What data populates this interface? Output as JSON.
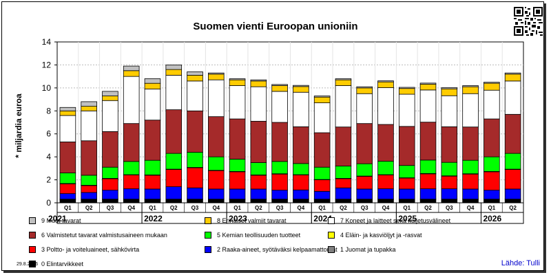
{
  "chart_data": {
    "type": "bar",
    "stacked": true,
    "title": "Suomen vienti Euroopan unioniin",
    "ylabel": "* miljardia euroa",
    "xlabel": "",
    "ylim": [
      0,
      14
    ],
    "yticks": [
      0,
      2,
      4,
      6,
      8,
      10,
      12,
      14
    ],
    "grid": true,
    "legend_position": "bottom",
    "categories": [
      "2021 Q1",
      "2021 Q2",
      "2021 Q3",
      "2021 Q4",
      "2022 Q1",
      "2022 Q2",
      "2022 Q3",
      "2022 Q4",
      "2023 Q1",
      "2023 Q2",
      "2023 Q3",
      "2023 Q4",
      "2024 Q1",
      "2024 Q2",
      "2024 Q3",
      "2024 Q4",
      "2025 Q1",
      "2025 Q2",
      "2025 Q3",
      "2025 Q4",
      "2026 Q1",
      "2026 Q2"
    ],
    "quarter_labels": [
      "Q1",
      "Q2",
      "Q3",
      "Q4",
      "Q1",
      "Q2",
      "Q3",
      "Q4",
      "Q1",
      "Q2",
      "Q3",
      "Q4",
      "Q1",
      "Q2",
      "Q3",
      "Q4",
      "Q1",
      "Q2",
      "Q3",
      "Q4",
      "Q1",
      "Q2"
    ],
    "year_labels": [
      {
        "label": "2021",
        "start": 0,
        "end": 3
      },
      {
        "label": "2022",
        "start": 4,
        "end": 7
      },
      {
        "label": "2023",
        "start": 8,
        "end": 11
      },
      {
        "label": "2024",
        "start": 12,
        "end": 15
      },
      {
        "label": "2025",
        "start": 16,
        "end": 19
      },
      {
        "label": "2026",
        "start": 20,
        "end": 21
      }
    ],
    "series": [
      {
        "name": "0 Elintarvikkeet",
        "color": "#000000",
        "values": [
          0.3,
          0.3,
          0.3,
          0.3,
          0.3,
          0.3,
          0.3,
          0.3,
          0.3,
          0.3,
          0.3,
          0.3,
          0.3,
          0.3,
          0.3,
          0.3,
          0.3,
          0.3,
          0.3,
          0.3,
          0.3,
          0.3
        ]
      },
      {
        "name": "1 Juomat ja tupakka",
        "color": "#808080",
        "values": [
          0.02,
          0.02,
          0.02,
          0.02,
          0.02,
          0.02,
          0.02,
          0.02,
          0.02,
          0.02,
          0.02,
          0.02,
          0.02,
          0.02,
          0.02,
          0.02,
          0.02,
          0.02,
          0.02,
          0.02,
          0.02,
          0.02
        ]
      },
      {
        "name": "2 Raaka-aineet, syötäväksi kelpaamattomat",
        "color": "#0000ff",
        "values": [
          0.48,
          0.58,
          0.78,
          0.9,
          0.88,
          1.08,
          0.98,
          0.88,
          0.88,
          0.88,
          0.78,
          0.8,
          0.68,
          0.98,
          0.88,
          0.9,
          0.88,
          0.9,
          0.9,
          0.88,
          0.78,
          0.88
        ]
      },
      {
        "name": "3 Poltto- ja voiteluaineet, sähkövirta",
        "color": "#ff0000",
        "values": [
          0.85,
          0.6,
          1.0,
          1.2,
          1.2,
          1.5,
          1.75,
          1.6,
          1.5,
          1.2,
          1.4,
          1.3,
          1.0,
          0.8,
          1.1,
          1.2,
          0.95,
          1.3,
          1.1,
          1.3,
          1.6,
          1.7
        ]
      },
      {
        "name": "4 Eläin- ja kasviöljyt ja -rasvat",
        "color": "#ffff00",
        "values": [
          0.03,
          0.03,
          0.03,
          0.03,
          0.03,
          0.03,
          0.03,
          0.03,
          0.03,
          0.03,
          0.03,
          0.03,
          0.03,
          0.03,
          0.03,
          0.03,
          0.03,
          0.03,
          0.03,
          0.03,
          0.03,
          0.03
        ]
      },
      {
        "name": "5 Kemian teollisuuden tuotteet",
        "color": "#00ff00",
        "values": [
          0.92,
          0.87,
          0.97,
          1.15,
          1.27,
          1.37,
          1.32,
          1.17,
          1.07,
          1.07,
          1.07,
          0.97,
          1.07,
          1.07,
          1.07,
          1.17,
          1.07,
          1.17,
          1.17,
          1.17,
          1.27,
          1.37
        ]
      },
      {
        "name": "6 Valmistetut tavarat valmistusaineen mukaan",
        "color": "#a52a2a",
        "values": [
          2.7,
          3.0,
          3.1,
          3.3,
          3.5,
          3.8,
          3.6,
          3.5,
          3.5,
          3.6,
          3.4,
          3.2,
          3.0,
          3.4,
          3.5,
          3.2,
          3.4,
          3.3,
          3.1,
          2.9,
          3.3,
          3.4
        ]
      },
      {
        "name": "7 Koneet ja laitteet sekä kuljetusvälineet",
        "color": "#ffffff",
        "values": [
          2.3,
          2.6,
          2.7,
          4.1,
          2.7,
          3.0,
          2.6,
          3.2,
          2.9,
          3.0,
          2.7,
          3.0,
          2.6,
          3.6,
          2.6,
          3.2,
          2.8,
          2.8,
          2.7,
          2.9,
          2.5,
          2.9
        ]
      },
      {
        "name": "8 Erinäiset valmiit tavarat",
        "color": "#ffcc00",
        "values": [
          0.4,
          0.4,
          0.4,
          0.5,
          0.5,
          0.5,
          0.5,
          0.5,
          0.5,
          0.5,
          0.5,
          0.5,
          0.5,
          0.5,
          0.5,
          0.5,
          0.5,
          0.5,
          0.6,
          0.6,
          0.6,
          0.6
        ]
      },
      {
        "name": "9 Muut tavarat",
        "color": "#c0c0c0",
        "values": [
          0.3,
          0.4,
          0.4,
          0.4,
          0.4,
          0.4,
          0.3,
          0.1,
          0.1,
          0.1,
          0.1,
          0.1,
          0.1,
          0.1,
          0.1,
          0.1,
          0.1,
          0.1,
          0.1,
          0.1,
          0.1,
          0.1
        ]
      }
    ]
  },
  "legend": [
    {
      "name": "9 Muut tavarat",
      "color": "#c0c0c0"
    },
    {
      "name": "8 Erinäiset valmiit tavarat",
      "color": "#ffcc00"
    },
    {
      "name": "7 Koneet ja laitteet sekä kuljetusvälineet",
      "color": "#ffffff"
    },
    {
      "name": "6 Valmistetut tavarat valmistusaineen mukaan",
      "color": "#a52a2a"
    },
    {
      "name": "5 Kemian teollisuuden tuotteet",
      "color": "#00ff00"
    },
    {
      "name": "4 Eläin- ja kasviöljyt ja -rasvat",
      "color": "#ffff00"
    },
    {
      "name": "3 Poltto- ja voiteluaineet, sähkövirta",
      "color": "#ff0000"
    },
    {
      "name": "2 Raaka-aineet, syötäväksi kelpaamattomat",
      "color": "#0000ff"
    },
    {
      "name": "1 Juomat ja tupakka",
      "color": "#808080"
    },
    {
      "name": "0 Elintarvikkeet",
      "color": "#000000"
    }
  ],
  "footer": {
    "date": "29.8.2026",
    "source": "Lähde: Tulli"
  },
  "qr_icon": "qr-code-icon"
}
